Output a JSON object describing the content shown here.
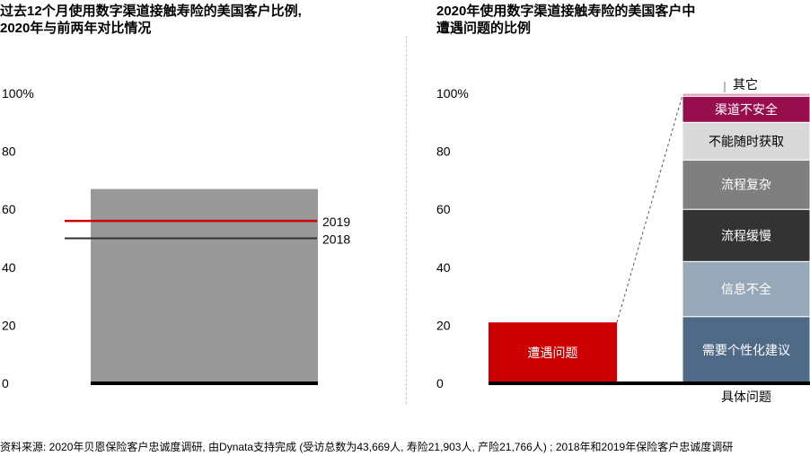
{
  "titles": {
    "left_line1": "过去12个月使用数字渠道接触寿险的美国客户比例,",
    "left_line2": "2020年与前两年对比情况",
    "right_line1": "2020年使用数字渠道接触寿险的美国客户中",
    "right_line2": "遭遇问题的比例"
  },
  "footnote": "资料来源: 2020年贝恩保险客户忠诚度调研, 由Dynata支持完成 (受访总数为43,669人, 寿险21,903人, 产险21,766人) ; 2018年和2019年保险客户忠诚度调研",
  "chart_data": [
    {
      "type": "bar",
      "ylim": [
        0,
        100
      ],
      "yticks": [
        "0",
        "20",
        "40",
        "60",
        "80",
        "100%"
      ],
      "bar": {
        "value": 67,
        "color": "#999999"
      },
      "reference_lines": [
        {
          "label": "2019",
          "value": 56,
          "color": "#cc0000"
        },
        {
          "label": "2018",
          "value": 50,
          "color": "#333333"
        }
      ]
    },
    {
      "type": "bar",
      "ylim": [
        0,
        100
      ],
      "yticks": [
        "0",
        "20",
        "40",
        "60",
        "80",
        "100%"
      ],
      "bar": {
        "label": "遭遇问题",
        "value": 21,
        "color": "#cc0000"
      },
      "stacked_bar": {
        "xlabel": "具体问题",
        "segments": [
          {
            "label": "需要个性化建议",
            "value": 23,
            "color": "#4f6a87"
          },
          {
            "label": "信息不全",
            "value": 19,
            "color": "#97a9b8"
          },
          {
            "label": "流程缓慢",
            "value": 18,
            "color": "#333333"
          },
          {
            "label": "流程复杂",
            "value": 17,
            "color": "#7f7f7f"
          },
          {
            "label": "不能随时获取",
            "value": 13,
            "color": "#d9d9d9"
          },
          {
            "label": "渠道不安全",
            "value": 9,
            "color": "#960e4d"
          },
          {
            "label": "其它",
            "value": 1,
            "color": "#d9a3b9"
          }
        ]
      }
    }
  ]
}
